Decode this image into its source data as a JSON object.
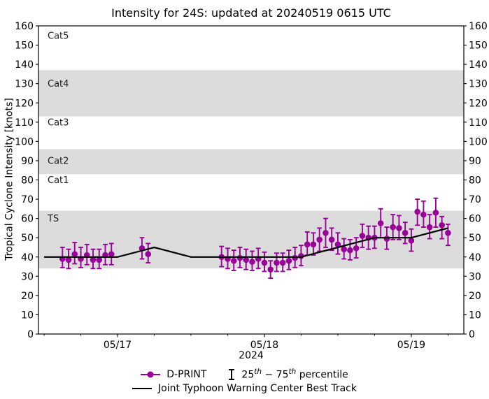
{
  "title": "Intensity for 24S: updated at 20240519 0615 UTC",
  "ylabel": "Tropical Cyclone Intensity [knots]",
  "year_label": "2024",
  "legend": {
    "dprint": "D-PRINT",
    "percentile_pre": "25",
    "percentile_sup1": "th",
    "percentile_mid": " − 75",
    "percentile_sup2": "th",
    "percentile_post": " percentile",
    "best_track": "Joint Typhoon Warning Center Best Track"
  },
  "colors": {
    "dprint": "#990099",
    "best_track": "#000000",
    "band": "#dcdcdc",
    "axis": "#000000",
    "band_label": "#1a1a1a"
  },
  "chart_data": {
    "type": "line",
    "title": "Intensity for 24S: updated at 20240519 0615 UTC",
    "xlabel": "2024",
    "ylabel": "Tropical Cyclone Intensity [knots]",
    "ylim": [
      0,
      160
    ],
    "y_tick_step": 10,
    "xlim": [
      "05/16 11:05",
      "05/19 08:35"
    ],
    "x_major_ticks": [
      {
        "t": "05/17 00:00",
        "label": "05/17"
      },
      {
        "t": "05/18 00:00",
        "label": "05/18"
      },
      {
        "t": "05/19 00:00",
        "label": "05/19"
      }
    ],
    "x_minor_step_hours": 6,
    "grid": false,
    "legend_position": "bottom-center",
    "bands": [
      {
        "label": "TS",
        "lo": 34,
        "hi": 64,
        "shaded": true,
        "label_v": 60
      },
      {
        "label": "Cat1",
        "lo": 64,
        "hi": 83,
        "shaded": false,
        "label_v": 80
      },
      {
        "label": "Cat2",
        "lo": 83,
        "hi": 96,
        "shaded": true,
        "label_v": 90
      },
      {
        "label": "Cat3",
        "lo": 96,
        "hi": 113,
        "shaded": false,
        "label_v": 110
      },
      {
        "label": "Cat4",
        "lo": 113,
        "hi": 137,
        "shaded": true,
        "label_v": 130
      },
      {
        "label": "Cat5",
        "lo": 137,
        "hi": 160,
        "shaded": false,
        "label_v": 155
      }
    ],
    "series": [
      {
        "name": "D-PRINT",
        "style": "markers+errorbars",
        "color": "#990099",
        "point_format": [
          "time",
          "value_kt",
          "p25_kt",
          "p75_kt"
        ],
        "points": [
          [
            "05/16 15:00",
            39,
            34.5,
            45
          ],
          [
            "05/16 16:00",
            38.5,
            34,
            44
          ],
          [
            "05/16 17:00",
            41.5,
            36.5,
            47.5
          ],
          [
            "05/16 18:00",
            39,
            34.5,
            45
          ],
          [
            "05/16 19:00",
            41,
            36,
            46.5
          ],
          [
            "05/16 20:00",
            38.5,
            34,
            44
          ],
          [
            "05/16 21:00",
            38.5,
            34,
            44
          ],
          [
            "05/16 22:00",
            41,
            36,
            46.5
          ],
          [
            "05/16 23:00",
            41.5,
            36,
            47
          ],
          [
            "05/17 04:00",
            44.5,
            39,
            50
          ],
          [
            "05/17 05:00",
            41.5,
            37,
            47
          ],
          [
            "05/17 17:00",
            40,
            35,
            45.5
          ],
          [
            "05/17 18:00",
            39,
            34,
            44.5
          ],
          [
            "05/17 19:00",
            38,
            33,
            43.5
          ],
          [
            "05/17 20:00",
            39.5,
            34.5,
            45
          ],
          [
            "05/17 21:00",
            38.5,
            33.5,
            44
          ],
          [
            "05/17 22:00",
            37.5,
            33,
            43
          ],
          [
            "05/17 23:00",
            39,
            34,
            44.5
          ],
          [
            "05/18 00:00",
            37,
            32.5,
            42.5
          ],
          [
            "05/18 01:00",
            33.5,
            29,
            38
          ],
          [
            "05/18 02:00",
            37,
            32.5,
            42
          ],
          [
            "05/18 03:00",
            37,
            32.5,
            42
          ],
          [
            "05/18 04:00",
            38,
            33.5,
            43.5
          ],
          [
            "05/18 05:00",
            39.5,
            34.5,
            45
          ],
          [
            "05/18 06:00",
            40.5,
            35.5,
            46
          ],
          [
            "05/18 07:00",
            46.5,
            41,
            53
          ],
          [
            "05/18 08:00",
            46.5,
            41,
            52.5
          ],
          [
            "05/18 09:00",
            49,
            43,
            55
          ],
          [
            "05/18 10:00",
            52.5,
            45,
            60
          ],
          [
            "05/18 11:00",
            49,
            43.5,
            55
          ],
          [
            "05/18 12:00",
            46.5,
            41.5,
            52.5
          ],
          [
            "05/18 13:00",
            44,
            39,
            49.5
          ],
          [
            "05/18 14:00",
            43.5,
            38.5,
            49
          ],
          [
            "05/18 15:00",
            44.5,
            39.5,
            50
          ],
          [
            "05/18 16:00",
            51,
            45,
            57
          ],
          [
            "05/18 17:00",
            50,
            44,
            56
          ],
          [
            "05/18 18:00",
            50,
            44.5,
            56
          ],
          [
            "05/18 19:00",
            57.5,
            50,
            65
          ],
          [
            "05/18 20:00",
            49.5,
            44,
            55.5
          ],
          [
            "05/18 21:00",
            55.5,
            49,
            62
          ],
          [
            "05/18 22:00",
            55,
            49,
            61.5
          ],
          [
            "05/18 23:00",
            52.5,
            47,
            58
          ],
          [
            "05/19 00:00",
            48.5,
            43,
            54.5
          ],
          [
            "05/19 01:00",
            63.5,
            56.5,
            70
          ],
          [
            "05/19 02:00",
            62,
            55.5,
            69
          ],
          [
            "05/19 03:00",
            55.5,
            49.5,
            62
          ],
          [
            "05/19 04:00",
            63,
            55.5,
            70.5
          ],
          [
            "05/19 05:00",
            56.5,
            49.5,
            61
          ],
          [
            "05/19 06:00",
            52.5,
            46,
            57
          ]
        ]
      },
      {
        "name": "Joint Typhoon Warning Center Best Track",
        "style": "line",
        "color": "#000000",
        "point_format": [
          "time",
          "value_kt"
        ],
        "points": [
          [
            "05/16 12:00",
            40
          ],
          [
            "05/16 18:00",
            40
          ],
          [
            "05/17 00:00",
            40
          ],
          [
            "05/17 06:00",
            45
          ],
          [
            "05/17 12:00",
            40
          ],
          [
            "05/17 18:00",
            40
          ],
          [
            "05/18 00:00",
            40
          ],
          [
            "05/18 06:00",
            40
          ],
          [
            "05/18 12:00",
            45
          ],
          [
            "05/18 18:00",
            50
          ],
          [
            "05/19 00:00",
            50
          ],
          [
            "05/19 06:00",
            55
          ]
        ]
      }
    ]
  }
}
